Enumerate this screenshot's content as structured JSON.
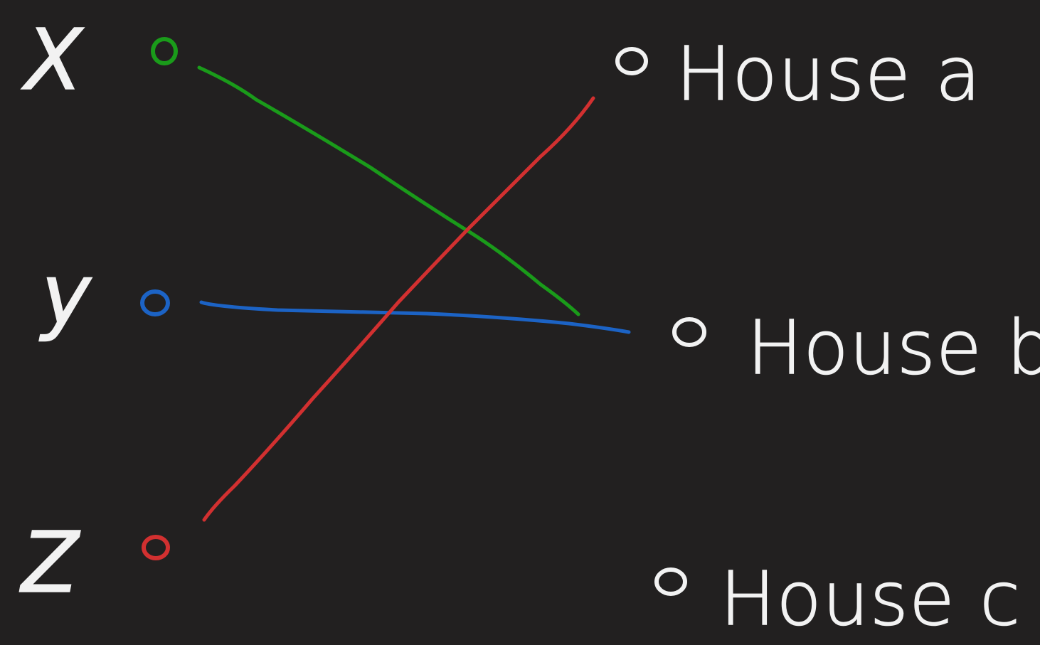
{
  "background_color": "#222020",
  "text_color": "#f2f2f2",
  "left_nodes": [
    {
      "id": "x",
      "label": "X",
      "color": "#1a9b1a"
    },
    {
      "id": "y",
      "label": "y",
      "color": "#1c63c5"
    },
    {
      "id": "z",
      "label": "Z",
      "color": "#d23030"
    }
  ],
  "right_nodes": [
    {
      "id": "a",
      "label": "House a",
      "color": "#f2f2f2"
    },
    {
      "id": "b",
      "label": "House b",
      "color": "#f2f2f2"
    },
    {
      "id": "c",
      "label": "House c",
      "color": "#f2f2f2"
    }
  ],
  "connections": [
    {
      "from": "x",
      "to": "b",
      "color": "#1a9b1a"
    },
    {
      "from": "y",
      "to": "b",
      "color": "#1c63c5"
    },
    {
      "from": "z",
      "to": "a",
      "color": "#d23030"
    }
  ]
}
